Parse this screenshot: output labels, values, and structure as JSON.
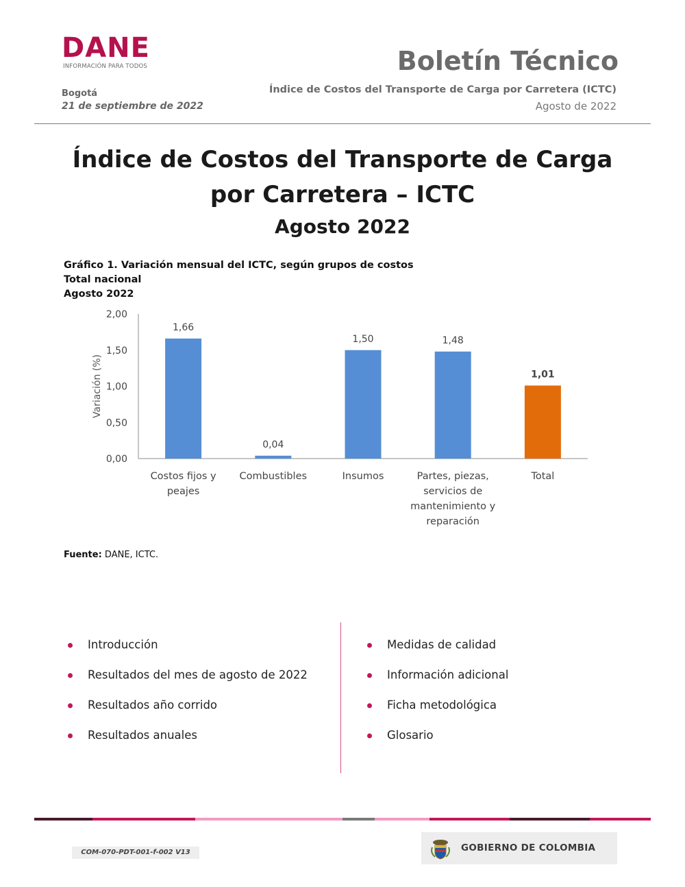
{
  "header": {
    "logo_text": "DANE",
    "logo_tagline": "INFORMACIÓN PARA TODOS",
    "bulletin_title": "Boletín Técnico",
    "city": "Bogotá",
    "date": "21 de septiembre de 2022",
    "index_name": "Índice de Costos del Transporte de Carga por Carretera (ICTC)",
    "period": "Agosto de 2022"
  },
  "title": {
    "line1": "Índice de Costos del Transporte de Carga",
    "line2": "por Carretera – ICTC",
    "subtitle": "Agosto 2022"
  },
  "chart_heading": {
    "line1": "Gráfico 1. Variación mensual del ICTC, según grupos de costos",
    "line2": "Total nacional",
    "line3": "Agosto 2022"
  },
  "chart_data": {
    "type": "bar",
    "categories": [
      [
        "Costos fijos y",
        "peajes"
      ],
      [
        "Combustibles"
      ],
      [
        "Insumos"
      ],
      [
        "Partes, piezas,",
        "servicios de",
        "mantenimiento y",
        "reparación"
      ],
      [
        "Total"
      ]
    ],
    "values": [
      1.66,
      0.04,
      1.5,
      1.48,
      1.01
    ],
    "value_labels": [
      "1,66",
      "0,04",
      "1,50",
      "1,48",
      "1,01"
    ],
    "bar_colors": [
      "#558ed5",
      "#558ed5",
      "#558ed5",
      "#558ed5",
      "#e36c0a"
    ],
    "bold_label_index": 4,
    "ylabel": "Variación (%)",
    "ylim": [
      0,
      2
    ],
    "yticks": [
      "0,00",
      "0,50",
      "1,00",
      "1,50",
      "2,00"
    ],
    "ytick_values": [
      0,
      0.5,
      1,
      1.5,
      2
    ],
    "grid": false
  },
  "source": {
    "label": "Fuente:",
    "text": " DANE, ICTC."
  },
  "index_left": [
    "Introducción",
    "Resultados del mes de agosto de 2022",
    "Resultados año corrido",
    "Resultados anuales"
  ],
  "index_right": [
    "Medidas de calidad",
    "Información adicional",
    "Ficha metodológica",
    "Glosario"
  ],
  "footer": {
    "code": "COM-070-PDT-001-f-002 V13",
    "gov": "GOBIERNO DE COLOMBIA",
    "bar_colors": [
      "#4a1a2c",
      "#c2185b",
      "#f29ac4",
      "#7a7a7a",
      "#f29ac4",
      "#c2185b",
      "#4a1a2c",
      "#c2185b"
    ]
  }
}
